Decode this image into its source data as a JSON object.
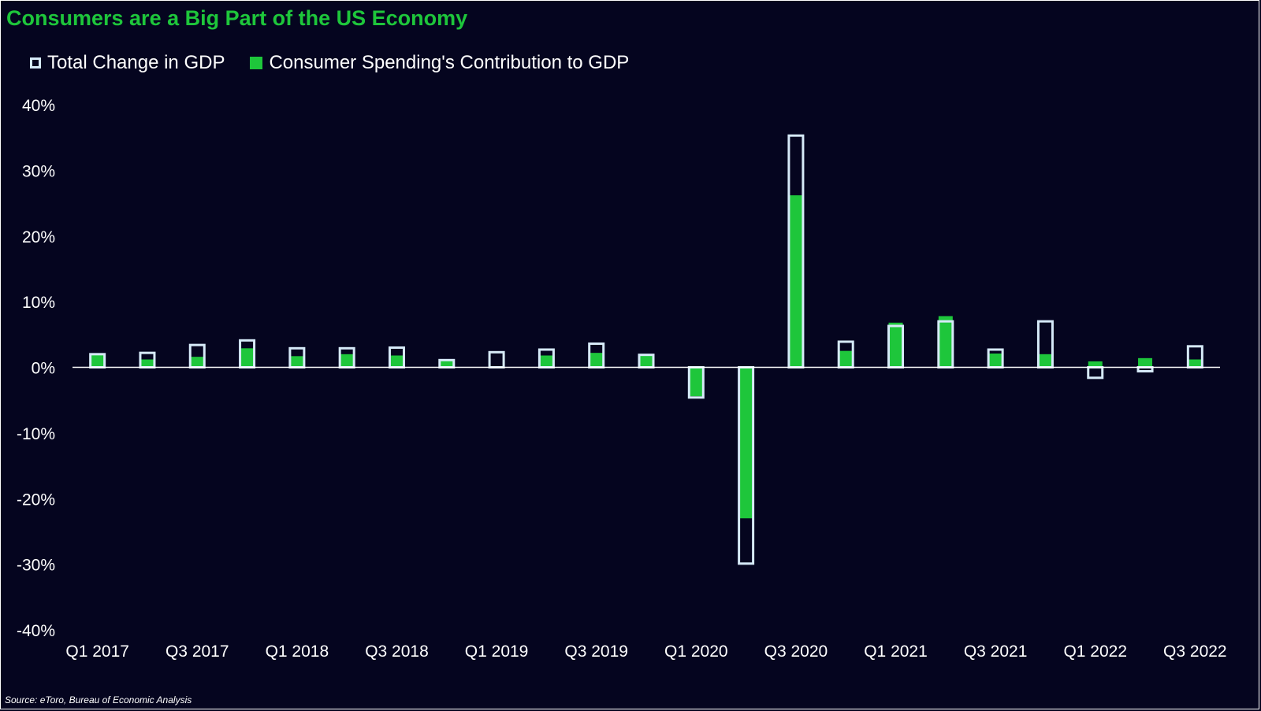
{
  "chart_data": {
    "type": "bar",
    "title": "Consumers are a Big Part of the US Economy",
    "source": "Source: eToro, Bureau of Economic Analysis",
    "legend_position": "top-left",
    "categories": [
      "Q1 2017",
      "Q2 2017",
      "Q3 2017",
      "Q4 2017",
      "Q1 2018",
      "Q2 2018",
      "Q3 2018",
      "Q4 2018",
      "Q1 2019",
      "Q2 2019",
      "Q3 2019",
      "Q4 2019",
      "Q1 2020",
      "Q2 2020",
      "Q3 2020",
      "Q4 2020",
      "Q1 2021",
      "Q2 2021",
      "Q3 2021",
      "Q4 2021",
      "Q1 2022",
      "Q2 2022",
      "Q3 2022"
    ],
    "x_tick_labels": [
      "Q1 2017",
      "Q3 2017",
      "Q1 2018",
      "Q3 2018",
      "Q1 2019",
      "Q3 2019",
      "Q1 2020",
      "Q3 2020",
      "Q1 2021",
      "Q3 2021",
      "Q1 2022",
      "Q3 2022"
    ],
    "y_tick_labels": [
      "40%",
      "30%",
      "20%",
      "10%",
      "0%",
      "-10%",
      "-20%",
      "-30%",
      "-40%"
    ],
    "ylim": [
      -40,
      40
    ],
    "grid": false,
    "series": [
      {
        "name": "Total Change in GDP",
        "style": "outline",
        "color": "#d6eaf8",
        "values": [
          2.0,
          2.2,
          3.4,
          4.1,
          2.9,
          2.9,
          3.0,
          1.1,
          2.3,
          2.7,
          3.6,
          1.9,
          -4.6,
          -29.9,
          35.3,
          3.9,
          6.3,
          7.0,
          2.7,
          7.0,
          -1.6,
          -0.6,
          3.2
        ]
      },
      {
        "name": "Consumer Spending's Contribution to GDP",
        "style": "fill",
        "color": "#1ec63b",
        "values": [
          1.9,
          1.2,
          1.6,
          2.9,
          1.7,
          2.0,
          1.8,
          1.1,
          0.1,
          1.8,
          2.2,
          1.8,
          -4.4,
          -23.0,
          26.2,
          2.5,
          6.8,
          7.8,
          2.1,
          2.0,
          0.9,
          1.4,
          1.2
        ]
      }
    ]
  }
}
